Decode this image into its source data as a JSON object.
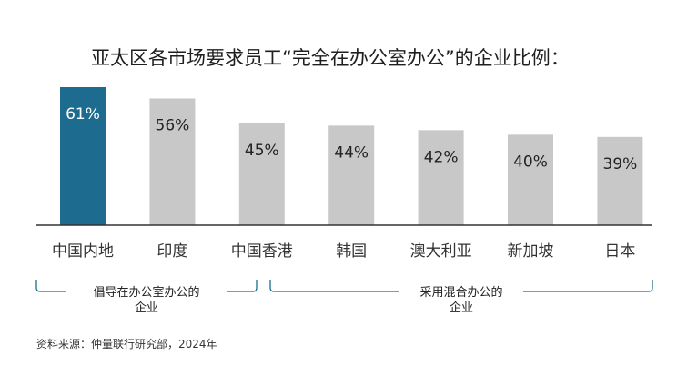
{
  "chart_data": {
    "type": "bar",
    "title": "亚太区各市场要求员工“完全在办公室办公”的企业比例：",
    "categories": [
      "中国内地",
      "印度",
      "中国香港",
      "韩国",
      "澳大利亚",
      "新加坡",
      "日本"
    ],
    "values": [
      61,
      56,
      45,
      44,
      42,
      40,
      39
    ],
    "value_labels": [
      "61%",
      "56%",
      "45%",
      "44%",
      "42%",
      "40%",
      "39%"
    ],
    "unit": "%",
    "ylim": [
      0,
      61
    ],
    "highlight_index": 0,
    "colors": {
      "highlight": "#1d6b8f",
      "default": "#c8c8c8",
      "highlight_text": "#ffffff",
      "default_text": "#222222",
      "baseline": "#333333",
      "bracket": "#1d6b8f"
    },
    "groups": [
      {
        "label_line1": "倡导在办公室办公的",
        "label_line2": "企业",
        "from_index": 0,
        "to_index": 2
      },
      {
        "label_line1": "采用混合办公的",
        "label_line2": "企业",
        "from_index": 3,
        "to_index": 6
      }
    ],
    "source": "资料来源：仲量联行研究部，2024年",
    "xlabel": "",
    "ylabel": "",
    "grid": false
  }
}
